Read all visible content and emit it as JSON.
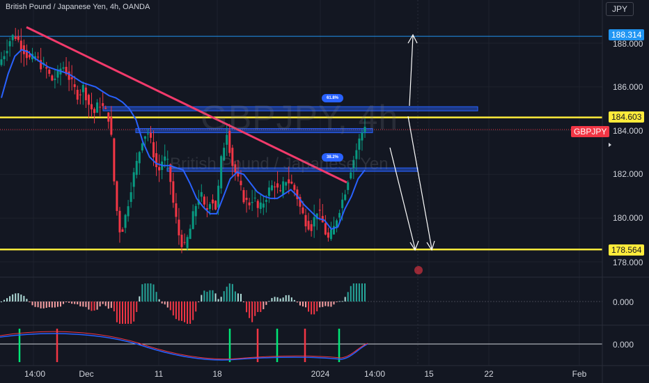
{
  "header": {
    "symbol_title": "British Pound / Japanese Yen, 4h, OANDA",
    "currency": "JPY"
  },
  "watermark": {
    "ticker": "GBPJPY, 4h",
    "description": "British Pound / Japanese Yen"
  },
  "price_axis": {
    "labels": [
      "188.000",
      "186.000",
      "184.000",
      "182.000",
      "180.000",
      "178.000"
    ],
    "tags": {
      "upper_target": "188.314",
      "resistance": "184.603",
      "symbol": "GBPJPY",
      "support": "178.564"
    }
  },
  "indicator_axis": {
    "osc1": "0.000",
    "osc2": "0.000"
  },
  "time_axis": {
    "labels": [
      "14:00",
      "Dec",
      "11",
      "18",
      "2024",
      "14:00",
      "15",
      "22",
      "Feb"
    ]
  },
  "fib_labels": {
    "upper": "61.8%",
    "lower": "38.2%"
  },
  "colors": {
    "background": "#131722",
    "support_resistance": "#ffeb3b",
    "trendline": "#f23a6b",
    "moving_average": "#2962ff",
    "bull_candle": "#089981",
    "bear_candle": "#f23645",
    "target_line": "#2196f3"
  },
  "chart_data": {
    "type": "candlestick",
    "price_range": [
      177.6,
      189.3
    ],
    "levels": {
      "target": 188.314,
      "resistance": 184.603,
      "support": 178.564,
      "fib_618": 185.0,
      "fib_382": 182.2
    },
    "price_path": [
      187.0,
      187.5,
      188.1,
      188.4,
      188.0,
      187.6,
      187.2,
      187.4,
      187.0,
      186.8,
      186.3,
      186.5,
      187.0,
      186.6,
      186.0,
      185.6,
      186.0,
      185.2,
      184.8,
      185.3,
      184.9,
      184.5,
      180.8,
      179.2,
      180.2,
      181.5,
      182.5,
      183.6,
      184.0,
      183.2,
      182.0,
      182.8,
      182.4,
      180.5,
      179.2,
      178.6,
      179.4,
      180.5,
      181.2,
      180.2,
      181.0,
      180.4,
      182.8,
      184.0,
      182.5,
      181.8,
      181.0,
      180.6,
      181.0,
      180.3,
      180.8,
      181.3,
      181.6,
      181.0,
      181.8,
      181.6,
      181.2,
      180.3,
      179.8,
      179.6,
      180.4,
      179.8,
      179.0,
      179.4,
      180.3,
      181.0,
      182.0,
      182.8,
      183.6,
      184.3
    ],
    "ma_path": [
      185.5,
      186.6,
      187.4,
      187.7,
      187.6,
      187.3,
      187.1,
      186.9,
      186.8,
      186.7,
      186.6,
      186.4,
      186.2,
      186.1,
      186.0,
      185.8,
      185.6,
      185.5,
      185.3,
      185.0,
      184.5,
      183.5,
      182.8,
      182.5,
      182.4,
      182.4,
      182.3,
      182.2,
      181.6,
      180.9,
      180.5,
      180.2,
      180.2,
      181.0,
      181.8,
      182.1,
      182.0,
      181.6,
      181.2,
      181.0,
      180.9,
      180.9,
      181.1,
      181.3,
      181.0,
      180.6,
      180.3,
      180.0,
      179.9,
      179.5,
      179.6,
      180.4,
      181.0,
      181.8,
      182.2
    ]
  }
}
